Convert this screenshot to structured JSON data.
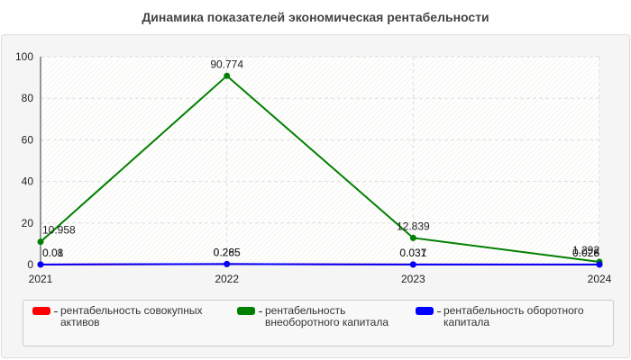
{
  "chart_data": {
    "type": "line",
    "title": "Динамика показателей экономическая рентабельности",
    "categories": [
      "2021",
      "2022",
      "2023",
      "2024"
    ],
    "series": [
      {
        "name": "рентабельность совокупных активов",
        "color": "#ff0000",
        "values": [
          0.01,
          0.265,
          0.031,
          0.026
        ]
      },
      {
        "name": "рентабельность внеоборотного капитала",
        "color": "#008000",
        "values": [
          10.958,
          90.774,
          12.839,
          1.292
        ]
      },
      {
        "name": "рентабельность оборотного капитала",
        "color": "#0000ff",
        "values": [
          0.08,
          0.285,
          0.037,
          0.028
        ]
      }
    ],
    "ylim": [
      0,
      100
    ],
    "yticks": [
      0,
      20,
      40,
      60,
      80,
      100
    ],
    "grid": true
  }
}
